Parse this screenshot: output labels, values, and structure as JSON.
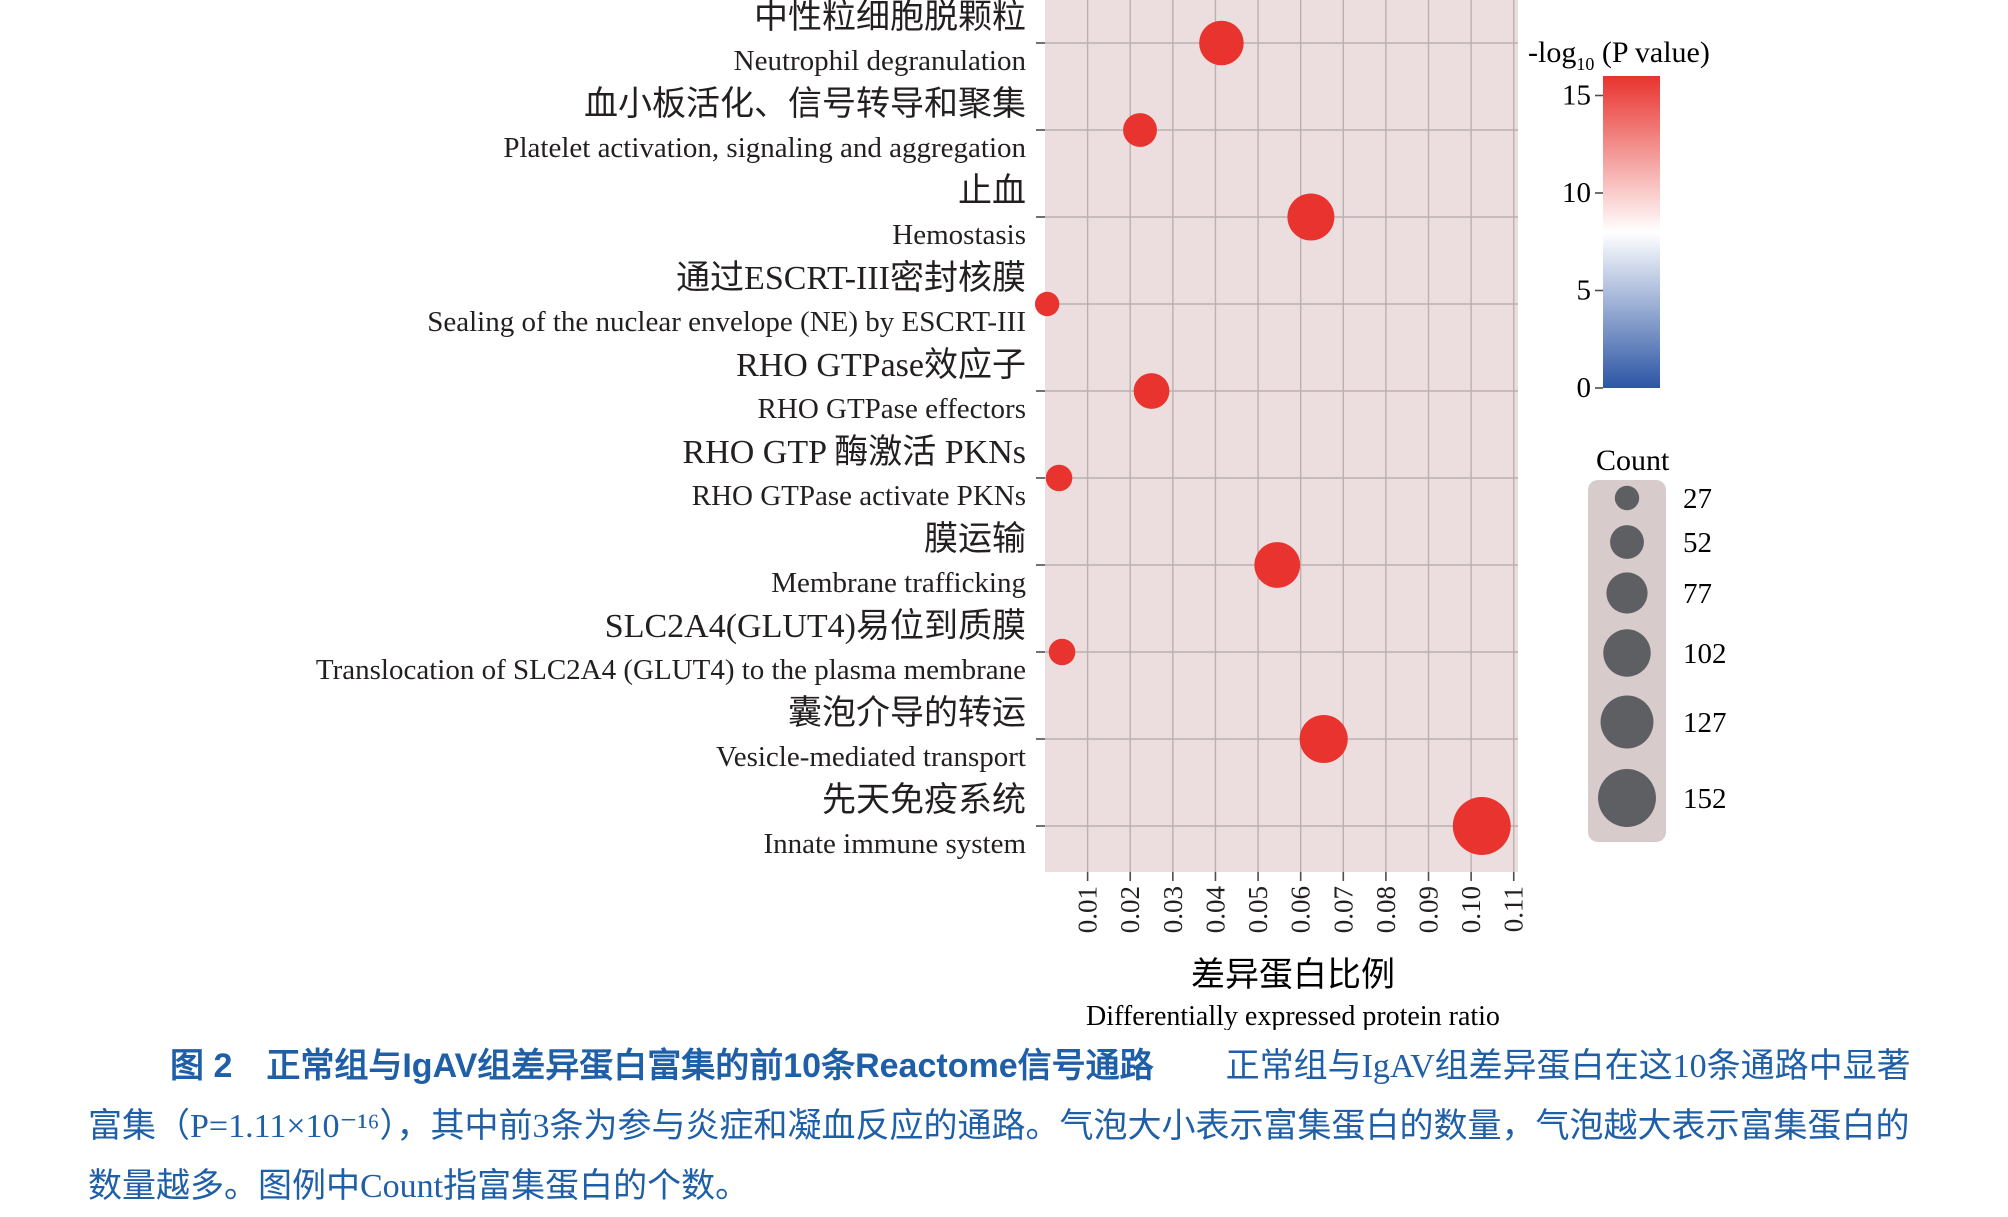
{
  "chart_data": {
    "type": "scatter",
    "categories": [
      {
        "zh": "中性粒细胞脱颗粒",
        "en": "Neutrophil degranulation"
      },
      {
        "zh": "血小板活化、信号转导和聚集",
        "en": "Platelet activation, signaling and aggregation"
      },
      {
        "zh": "止血",
        "en": "Hemostasis"
      },
      {
        "zh": "通过ESCRT-III密封核膜",
        "en": "Sealing of the nuclear envelope (NE) by ESCRT-III"
      },
      {
        "zh": "RHO GTPase效应子",
        "en": "RHO GTPase effectors"
      },
      {
        "zh": "RHO GTP 酶激活 PKNs",
        "en": "RHO GTPase activate PKNs"
      },
      {
        "zh": "膜运输",
        "en": "Membrane trafficking"
      },
      {
        "zh": "SLC2A4(GLUT4)易位到质膜",
        "en": "Translocation of SLC2A4 (GLUT4) to the plasma membrane"
      },
      {
        "zh": "囊泡介导的转运",
        "en": "Vesicle-mediated transport"
      },
      {
        "zh": "先天免疫系统",
        "en": "Innate immune system"
      }
    ],
    "points": [
      {
        "ratio": 0.0414,
        "count": 90,
        "neglog10p": 15.95
      },
      {
        "ratio": 0.0223,
        "count": 52,
        "neglog10p": 15.95
      },
      {
        "ratio": 0.0624,
        "count": 100,
        "neglog10p": 15.95
      },
      {
        "ratio": 0.0005,
        "count": 27,
        "neglog10p": 15.95
      },
      {
        "ratio": 0.025,
        "count": 58,
        "neglog10p": 15.95
      },
      {
        "ratio": 0.0033,
        "count": 32,
        "neglog10p": 15.95
      },
      {
        "ratio": 0.0545,
        "count": 95,
        "neglog10p": 15.95
      },
      {
        "ratio": 0.004,
        "count": 32,
        "neglog10p": 15.95
      },
      {
        "ratio": 0.0654,
        "count": 105,
        "neglog10p": 15.95
      },
      {
        "ratio": 0.1025,
        "count": 152,
        "neglog10p": 15.95
      }
    ],
    "x_ticks": [
      "0.01",
      "0.02",
      "0.03",
      "0.04",
      "0.05",
      "0.06",
      "0.07",
      "0.08",
      "0.09",
      "0.10",
      "0.11"
    ],
    "xlim": [
      0.0,
      0.111
    ],
    "xlabel_zh": "差异蛋白比例",
    "xlabel_en": "Differentially expressed protein ratio",
    "grid": true,
    "colors": {
      "panel": "#ecdedf",
      "grid": "#b9b0b1",
      "high": "#e8332e",
      "mid": "#ffffff",
      "low": "#2c55a5",
      "count_legend_bg": "#d7cbcc",
      "count_dot": "#5d5f62"
    },
    "color_legend": {
      "title": "-log10 (P value)",
      "title_main": "-log",
      "title_sub": "10",
      "title_rest": " (P value)",
      "ticks": [
        "0",
        "5",
        "10",
        "15"
      ],
      "range": [
        0,
        16
      ],
      "midpoint": 8
    },
    "size_legend": {
      "title": "Count",
      "values": [
        27,
        52,
        77,
        102,
        127,
        152
      ]
    },
    "legend_position": "right"
  },
  "caption": {
    "title": "图 2　正常组与IgAV组差异蛋白富集的前10条Reactome信号通路",
    "body": "正常组与IgAV组差异蛋白在这10条通路中显著富集（P=1.11×10⁻¹⁶），其中前3条为参与炎症和凝血反应的通路。气泡大小表示富集蛋白的数量，气泡越大表示富集蛋白的数量越多。图例中Count指富集蛋白的个数。"
  }
}
